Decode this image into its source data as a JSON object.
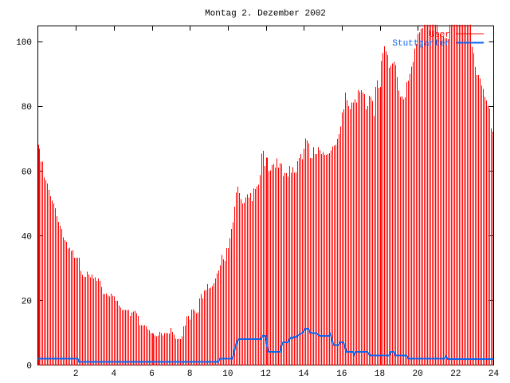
{
  "title": "Montag 2. Dezember 2002",
  "legend": {
    "position": "top-right-inside",
    "entries": [
      {
        "label": "User",
        "color": "#ff0000",
        "style": "impulses"
      },
      {
        "label": "Stuttgarter",
        "color": "#0a66f0",
        "style": "line"
      }
    ]
  },
  "axes": {
    "x_tick_labels": [
      "2",
      "4",
      "6",
      "8",
      "10",
      "12",
      "14",
      "16",
      "18",
      "20",
      "22",
      "24"
    ],
    "x_tick_values": [
      2,
      4,
      6,
      8,
      10,
      12,
      14,
      16,
      18,
      20,
      22,
      24
    ],
    "y_tick_labels": [
      "0",
      "20",
      "40",
      "60",
      "80",
      "100"
    ],
    "y_tick_values": [
      0,
      20,
      40,
      60,
      80,
      100
    ],
    "x_range": [
      0,
      24
    ],
    "y_range": [
      0,
      105.3
    ],
    "grid": false,
    "border": true
  },
  "chart_data": {
    "type": "bar",
    "title": "Montag 2. Dezember 2002",
    "xlabel": "",
    "ylabel": "",
    "x_unit": "hour of day (5-minute samples)",
    "x_start": 0,
    "x_step_hours": 0.08333,
    "xlim": [
      0,
      24
    ],
    "ylim": [
      0,
      105.3
    ],
    "clip_value": 105.2,
    "legend_position": "top-right-inside",
    "series": [
      {
        "name": "User",
        "type": "impulses",
        "color": "#ff0000",
        "values": [
          68.1,
          66.8,
          62.9,
          62.9,
          58.0,
          57.1,
          56.1,
          54.1,
          52.2,
          50.8,
          50.0,
          48.5,
          46.0,
          44.3,
          43.0,
          42.0,
          39.4,
          38.6,
          38.1,
          36.0,
          36.3,
          35.3,
          35.5,
          33.2,
          33.2,
          33.2,
          33.2,
          29.1,
          27.8,
          27.3,
          27.3,
          28.9,
          28.0,
          27.1,
          28.0,
          26.8,
          27.1,
          26.0,
          26.8,
          26.0,
          24.2,
          21.9,
          21.9,
          22.1,
          21.4,
          21.2,
          22.1,
          21.4,
          21.2,
          19.8,
          19.8,
          18.3,
          17.8,
          17.0,
          17.0,
          17.0,
          17.0,
          17.0,
          15.2,
          16.2,
          16.5,
          16.7,
          16.0,
          15.2,
          12.3,
          12.3,
          12.2,
          12.3,
          11.9,
          11.1,
          10.7,
          9.9,
          9.9,
          9.7,
          9.1,
          8.9,
          9.1,
          10.2,
          9.9,
          9.1,
          9.9,
          9.9,
          9.9,
          9.7,
          11.4,
          10.2,
          9.4,
          8.1,
          8.0,
          8.1,
          8.0,
          8.9,
          11.9,
          12.2,
          15.0,
          15.2,
          14.0,
          17.1,
          17.3,
          16.8,
          16.0,
          16.3,
          20.6,
          21.9,
          20.6,
          23.0,
          23.2,
          25.0,
          23.7,
          23.9,
          24.4,
          25.3,
          26.8,
          28.4,
          29.2,
          30.8,
          34.0,
          32.7,
          32.2,
          36.1,
          36.1,
          39.2,
          42.0,
          44.1,
          49.0,
          53.3,
          55.1,
          53.1,
          51.3,
          50.0,
          50.2,
          51.8,
          52.8,
          51.8,
          53.1,
          50.7,
          54.6,
          54.4,
          55.2,
          55.7,
          58.7,
          65.4,
          66.2,
          61.6,
          64.1,
          64.1,
          60.0,
          60.2,
          61.8,
          62.1,
          61.0,
          63.9,
          61.0,
          62.4,
          62.1,
          58.5,
          59.5,
          59.3,
          58.2,
          61.6,
          59.5,
          61.2,
          59.4,
          59.6,
          63.0,
          64.0,
          65.3,
          63.7,
          66.8,
          70.0,
          69.4,
          68.6,
          64.0,
          64.0,
          67.3,
          65.3,
          65.3,
          67.3,
          66.3,
          65.3,
          65.8,
          65.0,
          65.0,
          65.3,
          65.5,
          66.3,
          67.6,
          67.8,
          68.1,
          69.9,
          71.4,
          73.8,
          78.1,
          79.1,
          84.2,
          81.9,
          80.1,
          79.1,
          81.1,
          81.1,
          82.1,
          81.1,
          85.0,
          84.5,
          85.0,
          84.2,
          83.7,
          79.1,
          80.1,
          83.2,
          82.9,
          81.6,
          77.0,
          86.0,
          88.1,
          85.7,
          86.0,
          94.0,
          96.5,
          98.6,
          97.0,
          95.8,
          91.9,
          92.5,
          93.3,
          93.7,
          92.7,
          89.0,
          84.9,
          82.9,
          83.1,
          82.1,
          82.8,
          87.5,
          88.0,
          90.1,
          92.3,
          93.7,
          97.8,
          99.3,
          102.4,
          102.9,
          104.0,
          104.2,
          105.2,
          105.2,
          105.2,
          105.2,
          105.2,
          105.2,
          105.2,
          105.2,
          105.2,
          102.7,
          102.2,
          101.6,
          101.9,
          101.1,
          101.0,
          100.8,
          105.2,
          105.2,
          105.2,
          105.2,
          105.2,
          105.2,
          105.2,
          105.2,
          105.2,
          105.2,
          105.2,
          105.2,
          105.2,
          105.2,
          98.3,
          96.5,
          92.2,
          89.7,
          89.7,
          88.6,
          86.5,
          85.4,
          82.9,
          81.8,
          80.0,
          79.3,
          73.2,
          72.1
        ]
      },
      {
        "name": "Stuttgarter",
        "type": "line",
        "color": "#0a66f0",
        "values": [
          2.0,
          2.0,
          2.0,
          2.0,
          2.0,
          2.0,
          2.0,
          2.0,
          2.0,
          2.0,
          2.0,
          2.0,
          2.0,
          2.0,
          2.0,
          2.0,
          2.0,
          2.0,
          2.0,
          2.0,
          2.0,
          2.0,
          2.0,
          2.0,
          2.0,
          2.0,
          1.0,
          1.0,
          1.0,
          1.0,
          1.0,
          1.0,
          1.0,
          1.0,
          1.0,
          1.0,
          1.0,
          1.0,
          1.0,
          1.0,
          1.0,
          1.0,
          1.0,
          1.0,
          1.0,
          1.0,
          1.0,
          1.0,
          1.0,
          1.0,
          1.0,
          1.0,
          1.0,
          1.0,
          1.0,
          1.0,
          1.0,
          1.0,
          1.0,
          1.0,
          1.0,
          1.0,
          1.0,
          1.0,
          1.0,
          1.0,
          1.0,
          1.0,
          1.0,
          1.0,
          1.0,
          1.0,
          1.0,
          1.0,
          1.0,
          1.0,
          1.0,
          1.0,
          1.0,
          1.0,
          1.0,
          1.0,
          1.0,
          1.0,
          1.0,
          1.0,
          1.0,
          1.0,
          1.0,
          1.0,
          1.0,
          1.0,
          1.0,
          1.0,
          1.0,
          1.0,
          1.0,
          1.0,
          1.0,
          1.0,
          1.0,
          1.0,
          1.0,
          1.0,
          1.0,
          1.0,
          1.0,
          1.0,
          1.0,
          1.0,
          1.0,
          1.0,
          1.0,
          1.0,
          1.0,
          2.0,
          2.0,
          2.0,
          2.0,
          2.0,
          2.0,
          2.0,
          2.0,
          2.0,
          4.0,
          6.0,
          7.5,
          8.0,
          8.0,
          8.0,
          8.0,
          8.0,
          8.0,
          8.0,
          8.0,
          8.0,
          8.0,
          8.0,
          8.0,
          8.0,
          8.0,
          8.0,
          9.0,
          9.0,
          9.0,
          5.0,
          4.0,
          4.0,
          4.0,
          4.0,
          4.0,
          4.0,
          4.0,
          4.0,
          6.0,
          7.0,
          7.0,
          7.0,
          7.0,
          8.0,
          8.5,
          8.2,
          8.8,
          8.5,
          9.0,
          9.3,
          9.6,
          9.9,
          10.5,
          11.2,
          11.2,
          11.2,
          10.0,
          9.9,
          9.9,
          9.9,
          9.9,
          9.4,
          9.0,
          9.0,
          9.0,
          9.0,
          9.0,
          9.0,
          9.0,
          9.7,
          7.5,
          6.1,
          6.1,
          6.1,
          6.1,
          7.0,
          7.0,
          7.0,
          5.5,
          4.1,
          4.1,
          4.1,
          4.1,
          4.1,
          3.2,
          4.1,
          4.1,
          4.1,
          4.1,
          4.1,
          4.1,
          4.1,
          4.1,
          3.5,
          2.9,
          2.9,
          2.9,
          2.9,
          2.9,
          2.9,
          2.9,
          2.9,
          2.9,
          2.9,
          2.9,
          2.9,
          2.9,
          4.0,
          4.0,
          4.0,
          2.9,
          2.9,
          2.9,
          2.9,
          2.9,
          2.9,
          2.9,
          2.9,
          2.0,
          2.0,
          2.0,
          2.0,
          2.0,
          2.0,
          2.0,
          2.0,
          2.0,
          2.0,
          2.0,
          2.0,
          2.0,
          2.0,
          2.0,
          2.0,
          2.0,
          2.0,
          2.0,
          2.0,
          2.0,
          2.0,
          2.0,
          2.0,
          2.7,
          1.8,
          1.8,
          1.8,
          1.8,
          1.8,
          1.8,
          1.8,
          1.8,
          1.8,
          1.8,
          1.8,
          1.8,
          1.8,
          1.8,
          1.8,
          1.8,
          1.8,
          1.8,
          1.8,
          1.8,
          1.8,
          1.8,
          1.8,
          1.8,
          1.8,
          1.8,
          1.8,
          1.8,
          1.8,
          1.8
        ]
      }
    ]
  },
  "colors": {
    "background": "#ffffff",
    "border": "#000000",
    "text": "#000000",
    "user_series": "#ff0000",
    "stuttgarter_series": "#0a66f0"
  }
}
